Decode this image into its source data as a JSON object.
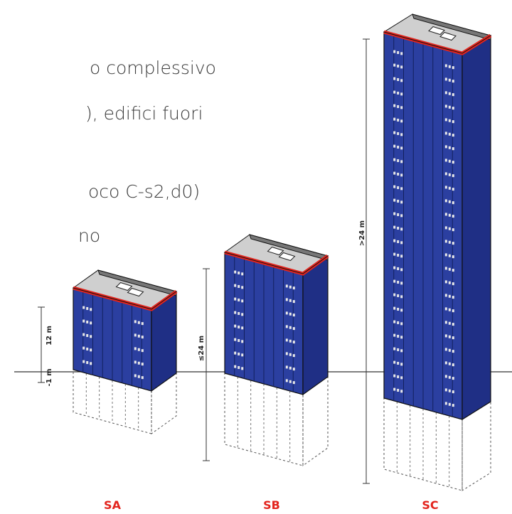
{
  "intro_text": {
    "lines": [
      "o complessivo",
      "), edifici fuori",
      "oco C-s2,d0)",
      "no"
    ]
  },
  "buildings": [
    {
      "label": "SA",
      "heights": [
        "12 m",
        "-1 m"
      ]
    },
    {
      "label": "SB",
      "heights": [
        "≤24 m"
      ]
    },
    {
      "label": "SC",
      "heights": [
        ">24 m"
      ]
    }
  ]
}
